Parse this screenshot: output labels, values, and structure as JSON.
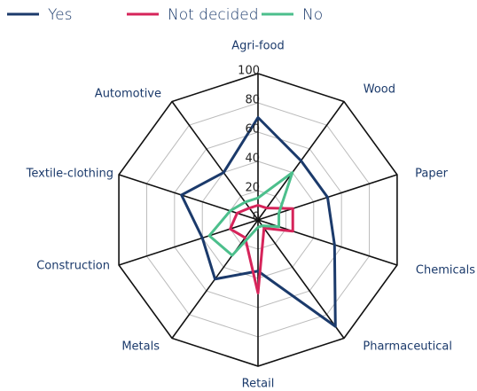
{
  "chart_data": {
    "type": "radar",
    "categories": [
      "Agri-food",
      "Wood",
      "Paper",
      "Chemicals",
      "Pharmaceutical",
      "Retail",
      "Metals",
      "Construction",
      "Textile-clothing",
      "Automotive"
    ],
    "series": [
      {
        "name": "Yes",
        "color": "#1b3a6b",
        "values": [
          70,
          50,
          50,
          55,
          90,
          35,
          50,
          40,
          55,
          40
        ]
      },
      {
        "name": "Not decided",
        "color": "#d6245a",
        "values": [
          10,
          10,
          25,
          25,
          7,
          50,
          15,
          20,
          15,
          10
        ]
      },
      {
        "name": "No",
        "color": "#4cbf8c",
        "values": [
          15,
          40,
          15,
          15,
          5,
          5,
          30,
          35,
          20,
          15
        ]
      }
    ],
    "ylim": [
      0,
      100
    ],
    "yticks": [
      0,
      20,
      40,
      60,
      80,
      100
    ],
    "grid": true,
    "legend": "top"
  }
}
